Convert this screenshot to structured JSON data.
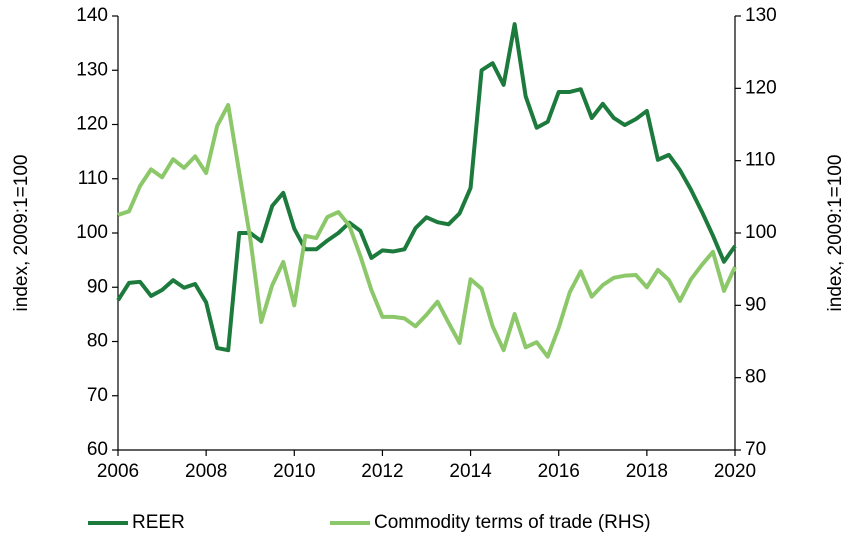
{
  "chart_data": {
    "type": "line",
    "y_label": "index, 2009:1=100",
    "y2_label": "index, 2009:1=100",
    "x": [
      2006,
      2006.25,
      2006.5,
      2006.75,
      2007,
      2007.25,
      2007.5,
      2007.75,
      2008,
      2008.25,
      2008.5,
      2008.75,
      2009,
      2009.25,
      2009.5,
      2009.75,
      2010,
      2010.25,
      2010.5,
      2010.75,
      2011,
      2011.25,
      2011.5,
      2011.75,
      2012,
      2012.25,
      2012.5,
      2012.75,
      2013,
      2013.25,
      2013.5,
      2013.75,
      2014,
      2014.25,
      2014.5,
      2014.75,
      2015,
      2015.25,
      2015.5,
      2015.75,
      2016,
      2016.25,
      2016.5,
      2016.75,
      2017,
      2017.25,
      2017.5,
      2017.75,
      2018,
      2018.25,
      2018.5,
      2018.75,
      2019,
      2019.25,
      2019.5,
      2019.75,
      2020
    ],
    "series": [
      {
        "name": "REER",
        "color": "#1c7a3c",
        "axis": "y",
        "values": [
          87.6,
          90.8,
          91,
          88.4,
          89.5,
          91.3,
          89.9,
          90.6,
          87.2,
          78.8,
          78.4,
          100,
          100,
          98.5,
          105,
          107.4,
          100.8,
          97,
          97,
          98.6,
          100,
          101.9,
          100.4,
          95.4,
          96.8,
          96.6,
          97,
          100.9,
          102.9,
          102,
          101.6,
          103.6,
          108.3,
          130,
          131.3,
          127.3,
          138.5,
          125.2,
          119.4,
          120.5,
          126,
          126,
          126.5,
          121.2,
          123.8,
          121.2,
          119.9,
          121,
          122.5,
          113.5,
          114.4,
          111.6,
          108,
          103.9,
          99.5,
          94.7,
          97.6
        ]
      },
      {
        "name": "Commodity terms of trade (RHS)",
        "color": "#8cc86a",
        "axis": "y2",
        "values": [
          102.5,
          103,
          106.5,
          108.8,
          107.7,
          110.2,
          109,
          110.6,
          108.3,
          114.8,
          117.7,
          108.4,
          99.3,
          87.7,
          92.8,
          96,
          90,
          99.6,
          99.3,
          102.2,
          102.9,
          101,
          96.8,
          92.1,
          88.4,
          88.4,
          88.2,
          87.1,
          88.7,
          90.5,
          87.6,
          84.8,
          93.6,
          92.3,
          87.1,
          83.8,
          88.8,
          84.2,
          84.9,
          82.9,
          86.9,
          91.8,
          94.7,
          91.2,
          92.8,
          93.8,
          94.1,
          94.2,
          92.5,
          94.9,
          93.5,
          90.6,
          93.6,
          95.6,
          97.4,
          92,
          95.3
        ]
      }
    ],
    "xlim": [
      2006,
      2020
    ],
    "xticks": [
      2006,
      2008,
      2010,
      2012,
      2014,
      2016,
      2018,
      2020
    ],
    "ylim": [
      60,
      140
    ],
    "yticks": [
      60,
      70,
      80,
      90,
      100,
      110,
      120,
      130,
      140
    ],
    "y2lim": [
      70,
      130
    ],
    "y2ticks": [
      70,
      80,
      90,
      100,
      110,
      120,
      130
    ],
    "legend": "bottom"
  }
}
